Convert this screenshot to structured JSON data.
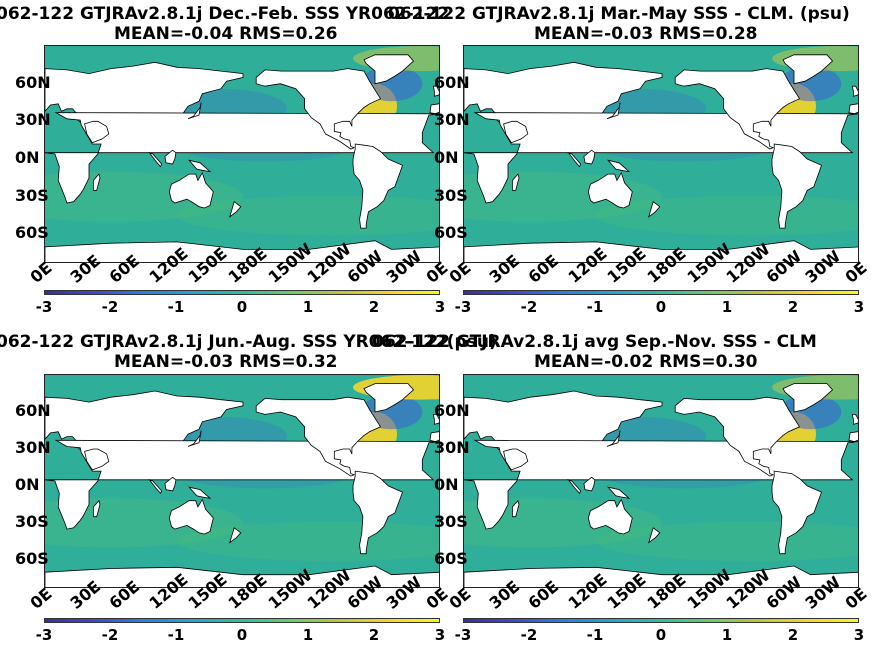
{
  "panels": [
    {
      "title_line1": "062-122 GTJRAv2.8.1j  Dec.-Feb. SSS YR062-122",
      "title_line2": "MEAN=-0.04   RMS=0.26"
    },
    {
      "title_line1": "062-122 GTJRAv2.8.1j Mar.-May SSS - CLM. (psu)",
      "title_line2": "MEAN=-0.03   RMS=0.28"
    },
    {
      "title_line1": "062-122 GTJRAv2.8.1j Jun.-Aug. SSS YR062-122(psu)",
      "title_line2": "MEAN=-0.03   RMS=0.32"
    },
    {
      "title_line1": "062-122 GTJRAv2.8.1j avg Sep.-Nov. SSS - CLM",
      "title_line2": "MEAN=-0.02   RMS=0.30"
    }
  ],
  "lat_ticks": [
    "60N",
    "30N",
    "0N",
    "30S",
    "60S"
  ],
  "lon_ticks": [
    "0E",
    "30E",
    "60E",
    "120E",
    "150E",
    "180E",
    "150W",
    "120W",
    "60W",
    "30W",
    "0E"
  ],
  "colorbar_ticks": [
    "-3",
    "-2",
    "-1",
    "0",
    "1",
    "2",
    "3"
  ],
  "colors": {
    "ocean": "#2fae9a",
    "land": "#ffffff",
    "positive": "#f6d52a",
    "negative": "#3f5fd8"
  }
}
